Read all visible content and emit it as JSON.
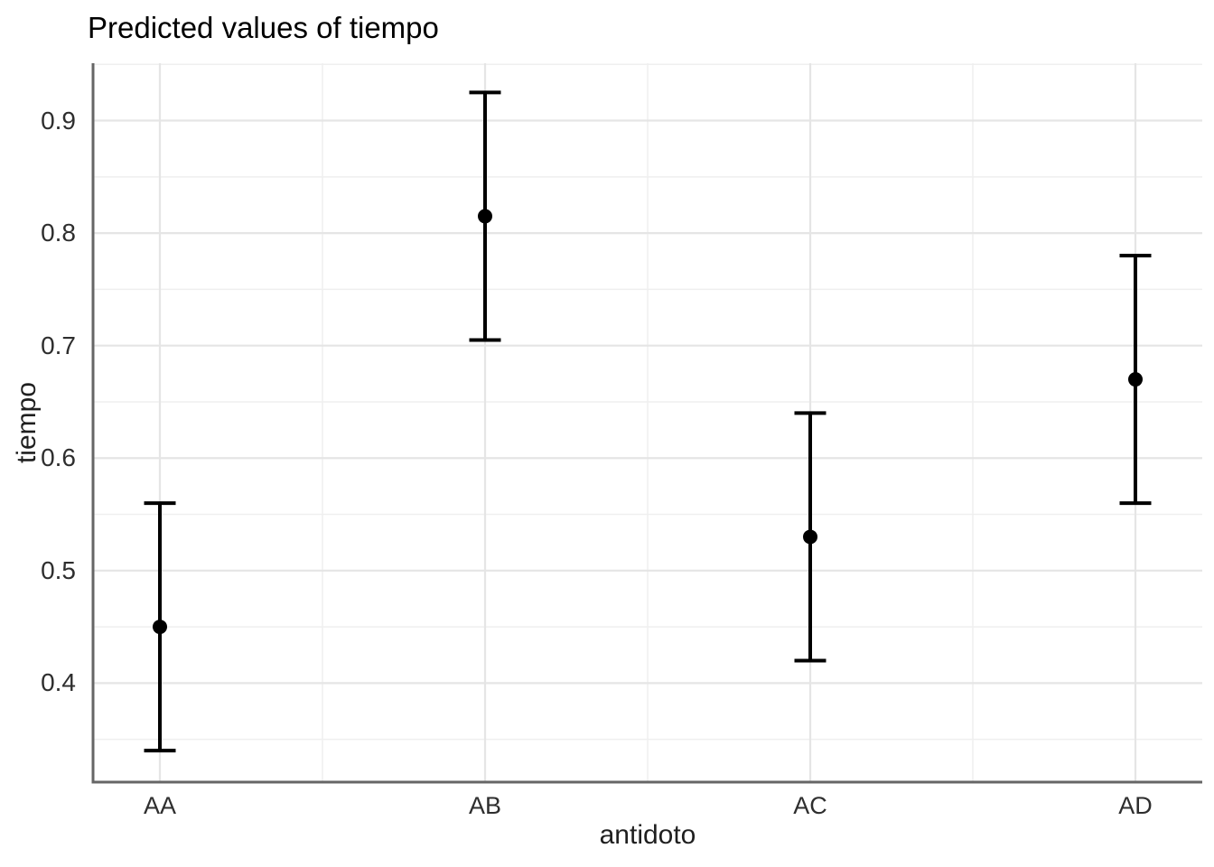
{
  "chart_data": {
    "type": "pointrange",
    "title": "Predicted values of tiempo",
    "xlabel": "antidoto",
    "ylabel": "tiempo",
    "categories": [
      "AA",
      "AB",
      "AC",
      "AD"
    ],
    "points": [
      {
        "category": "AA",
        "predicted": 0.45,
        "ci_low": 0.34,
        "ci_high": 0.56
      },
      {
        "category": "AB",
        "predicted": 0.815,
        "ci_low": 0.705,
        "ci_high": 0.925
      },
      {
        "category": "AC",
        "predicted": 0.53,
        "ci_low": 0.42,
        "ci_high": 0.64
      },
      {
        "category": "AD",
        "predicted": 0.67,
        "ci_low": 0.56,
        "ci_high": 0.78
      }
    ],
    "y_ticks": [
      0.4,
      0.5,
      0.6,
      0.7,
      0.8,
      0.9
    ],
    "y_tick_labels": [
      "0.4",
      "0.5",
      "0.6",
      "0.7",
      "0.8",
      "0.9"
    ],
    "y_minor_ticks": [
      0.35,
      0.45,
      0.55,
      0.65,
      0.75,
      0.85,
      0.95
    ],
    "ylim": [
      0.312,
      0.951
    ],
    "grid": true,
    "legend": false,
    "colors": {
      "point": "#000000",
      "errorbar": "#000000",
      "grid_major": "#e5e5e5",
      "grid_minor": "#efefef",
      "axis_line": "#666666",
      "text": "#1f1f1f",
      "background": "#ffffff"
    }
  }
}
